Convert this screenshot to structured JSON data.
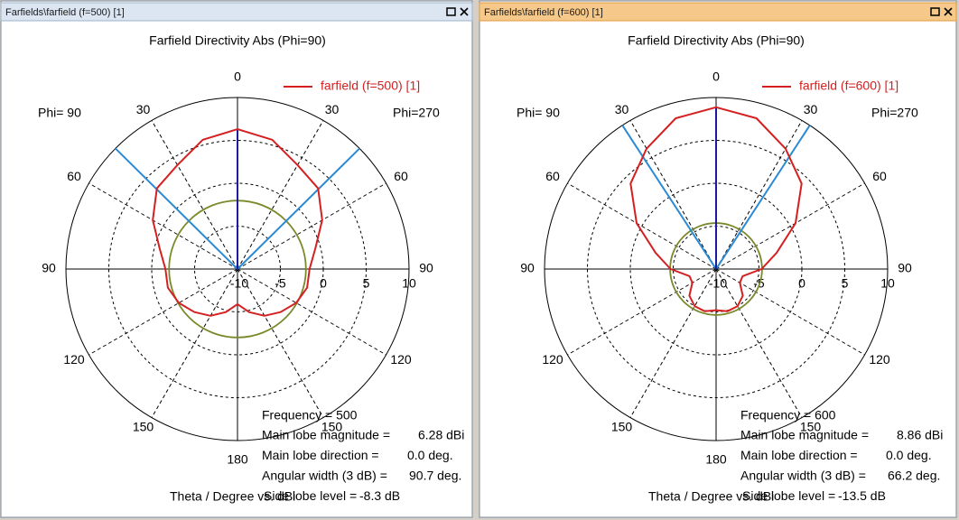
{
  "chart_data": [
    {
      "type": "polar",
      "window_title": "Farfields\\farfield (f=500) [1]",
      "title": "Farfield Directivity Abs (Phi=90)",
      "left_label": "Phi= 90",
      "right_label": "Phi=270",
      "axis_label": "Theta / Degree vs. dBi",
      "x": [
        0,
        15,
        30,
        45,
        60,
        75,
        90,
        105,
        120,
        135,
        150,
        165,
        180,
        195,
        210,
        225,
        240,
        255,
        270,
        285,
        300,
        315,
        330,
        345
      ],
      "series": [
        {
          "name": "farfield (f=500) [1]",
          "color": "#d42020",
          "values": [
            6.3,
            5.6,
            4.0,
            3.3,
            1.4,
            -0.6,
            -1.6,
            -1.6,
            -2.1,
            -2.9,
            -3.7,
            -4.8,
            -5.9,
            -4.8,
            -3.7,
            -2.9,
            -2.1,
            -1.6,
            -1.6,
            -0.6,
            1.4,
            3.3,
            4.0,
            5.6
          ]
        }
      ],
      "ylim": [
        -10,
        10
      ],
      "yticks": [
        -10,
        -5,
        0,
        5,
        10
      ],
      "xticks": [
        0,
        30,
        60,
        90,
        120,
        150,
        180,
        {
          "value": 210,
          "label": "150"
        },
        {
          "value": 240,
          "label": "120"
        },
        {
          "value": 270,
          "label": "90"
        },
        {
          "value": 300,
          "label": "60"
        },
        {
          "value": 330,
          "label": "30"
        }
      ],
      "grid": true,
      "frequency": "Frequency = 500",
      "main_lobe_magnitude": {
        "label": "Main lobe magnitude =",
        "value": 6.28,
        "value_label": "6.28 dBi"
      },
      "main_lobe_direction": {
        "label": "Main lobe direction =",
        "value": 0.0,
        "value_label": "0.0 deg."
      },
      "angular_width": {
        "label": "Angular width (3 dB) =",
        "value": 90.7,
        "value_label": "90.7 deg."
      },
      "side_lobe_level": {
        "label": "Side lobe level =",
        "value": -8.3,
        "value_label": "-8.3 dB"
      }
    },
    {
      "type": "polar",
      "window_title": "Farfields\\farfield (f=600) [1]",
      "title": "Farfield Directivity Abs (Phi=90)",
      "left_label": "Phi= 90",
      "right_label": "Phi=270",
      "axis_label": "Theta / Degree vs. dBi",
      "x": [
        0,
        15,
        30,
        45,
        60,
        75,
        90,
        105,
        120,
        135,
        150,
        165,
        180,
        195,
        210,
        225,
        240,
        255,
        270,
        285,
        300,
        315,
        330,
        345
      ],
      "series": [
        {
          "name": "farfield (f=600) [1]",
          "color": "#d42020",
          "values": [
            8.86,
            8.2,
            6.2,
            4.1,
            0.7,
            -2.7,
            -4.7,
            -6.8,
            -6.8,
            -5.6,
            -5.0,
            -4.9,
            -5.2,
            -4.9,
            -5.0,
            -5.6,
            -6.8,
            -6.8,
            -4.7,
            -2.7,
            0.7,
            4.1,
            6.2,
            8.2
          ]
        }
      ],
      "ylim": [
        -10,
        10
      ],
      "yticks": [
        -10,
        -5,
        0,
        5,
        10
      ],
      "xticks": [
        0,
        30,
        60,
        90,
        120,
        150,
        180,
        {
          "value": 210,
          "label": "150"
        },
        {
          "value": 240,
          "label": "120"
        },
        {
          "value": 270,
          "label": "90"
        },
        {
          "value": 300,
          "label": "60"
        },
        {
          "value": 330,
          "label": "30"
        }
      ],
      "grid": true,
      "frequency": "Frequency = 600",
      "main_lobe_magnitude": {
        "label": "Main lobe magnitude =",
        "value": 8.86,
        "value_label": "8.86 dBi"
      },
      "main_lobe_direction": {
        "label": "Main lobe direction =",
        "value": 0.0,
        "value_label": "0.0 deg."
      },
      "angular_width": {
        "label": "Angular width (3 dB) =",
        "value": 66.2,
        "value_label": "66.2 deg."
      },
      "side_lobe_level": {
        "label": "Side lobe level =",
        "value": -13.5,
        "value_label": "-13.5 dB"
      }
    }
  ]
}
